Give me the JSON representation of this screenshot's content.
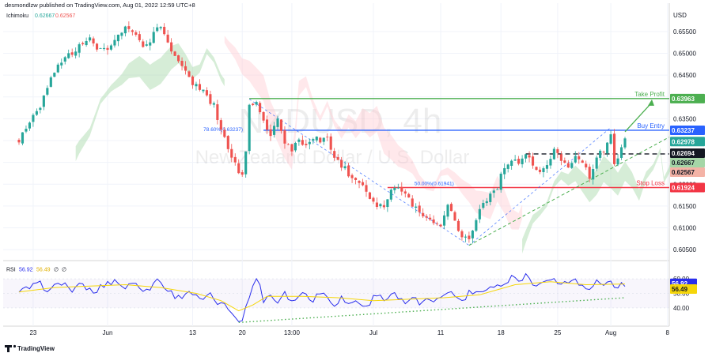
{
  "header": {
    "publisher": "desmondlzw published on TradingView.com, Aug 01, 2022 12:59 UTC+8",
    "indicator_name": "Ichimoku",
    "indicator_v1": "0.62667",
    "indicator_v2": "0.62567"
  },
  "watermark": {
    "symbol": "NZDUSD, 4h",
    "description": "New Zealand Dollar / U.S. Dollar"
  },
  "footer": {
    "brand": "TradingView"
  },
  "colors": {
    "up": "#26a69a",
    "down": "#ef5350",
    "take_profit": "#4caf50",
    "buy_entry": "#2962ff",
    "stop_loss": "#f23645",
    "rsi": "#2a2eec",
    "rsi_ma": "#f5d60a",
    "cloud_green": "#a5d6a7",
    "cloud_red": "#ffcdd2"
  },
  "chart_data": [
    {
      "type": "candlestick",
      "currency": "USD",
      "x_ticks": [
        "23",
        "Jun",
        "13",
        "20",
        "13:00",
        "Jul",
        "11",
        "18",
        "25",
        "Aug",
        "8"
      ],
      "ylim": [
        0.6025,
        0.6615
      ],
      "y_ticks": [
        "0.65500",
        "0.65000",
        "0.64500",
        "0.64000",
        "0.63500",
        "0.63000",
        "0.62500",
        "0.62000",
        "0.61500",
        "0.61000",
        "0.60500"
      ],
      "price_path": [
        [
          0,
          0.63
        ],
        [
          3,
          0.6345
        ],
        [
          6,
          0.638
        ],
        [
          9,
          0.645
        ],
        [
          12,
          0.648
        ],
        [
          15,
          0.65
        ],
        [
          17,
          0.652
        ],
        [
          20,
          0.653
        ],
        [
          23,
          0.6505
        ],
        [
          26,
          0.652
        ],
        [
          29,
          0.655
        ],
        [
          31,
          0.656
        ],
        [
          33,
          0.654
        ],
        [
          35,
          0.6515
        ],
        [
          37,
          0.6525
        ],
        [
          39,
          0.6565
        ],
        [
          41,
          0.6545
        ],
        [
          43,
          0.6505
        ],
        [
          45,
          0.648
        ],
        [
          47,
          0.646
        ],
        [
          49,
          0.643
        ],
        [
          51,
          0.642
        ],
        [
          53,
          0.64
        ],
        [
          55,
          0.638
        ],
        [
          57,
          0.632
        ],
        [
          59,
          0.6285
        ],
        [
          61,
          0.6245
        ],
        [
          63,
          0.6215
        ],
        [
          64,
          0.628
        ],
        [
          65,
          0.638
        ],
        [
          67,
          0.6395
        ],
        [
          69,
          0.6345
        ],
        [
          71,
          0.631
        ],
        [
          73,
          0.6345
        ],
        [
          75,
          0.63
        ],
        [
          77,
          0.6275
        ],
        [
          79,
          0.6305
        ],
        [
          81,
          0.6285
        ],
        [
          83,
          0.631
        ],
        [
          85,
          0.6295
        ],
        [
          87,
          0.631
        ],
        [
          89,
          0.626
        ],
        [
          91,
          0.6245
        ],
        [
          93,
          0.6225
        ],
        [
          95,
          0.6215
        ],
        [
          97,
          0.62
        ],
        [
          99,
          0.617
        ],
        [
          101,
          0.6155
        ],
        [
          103,
          0.615
        ],
        [
          105,
          0.6185
        ],
        [
          107,
          0.619
        ],
        [
          109,
          0.6175
        ],
        [
          111,
          0.6155
        ],
        [
          113,
          0.614
        ],
        [
          115,
          0.612
        ],
        [
          117,
          0.6115
        ],
        [
          119,
          0.611
        ],
        [
          121,
          0.615
        ],
        [
          123,
          0.612
        ],
        [
          125,
          0.608
        ],
        [
          127,
          0.6075
        ],
        [
          129,
          0.612
        ],
        [
          131,
          0.616
        ],
        [
          133,
          0.6175
        ],
        [
          135,
          0.6195
        ],
        [
          137,
          0.624
        ],
        [
          139,
          0.626
        ],
        [
          141,
          0.625
        ],
        [
          143,
          0.6265
        ],
        [
          145,
          0.6245
        ],
        [
          147,
          0.6225
        ],
        [
          149,
          0.6245
        ],
        [
          151,
          0.6275
        ],
        [
          153,
          0.626
        ],
        [
          155,
          0.624
        ],
        [
          157,
          0.627
        ],
        [
          159,
          0.625
        ],
        [
          161,
          0.6215
        ],
        [
          163,
          0.626
        ],
        [
          165,
          0.628
        ],
        [
          167,
          0.6318
        ],
        [
          168,
          0.625
        ],
        [
          169,
          0.6265
        ],
        [
          171,
          0.6298
        ]
      ],
      "ichimoku": {
        "last_value_1": 0.62667,
        "last_value_2": 0.62567
      },
      "levels": [
        {
          "name": "Take Profit",
          "value": "0.63963"
        },
        {
          "name": "Buy Entry",
          "value": "0.63237"
        },
        {
          "name": "Stop Loss",
          "value": "0.61924"
        }
      ],
      "price_labels": [
        "0.62978",
        "0.62694",
        "0.62667",
        "0.62567"
      ],
      "fib_labels": [
        "78.60%(0.63237)",
        "50.00%(0.61941)"
      ],
      "dashed_level": 0.62694
    },
    {
      "type": "line",
      "name": "RSI",
      "label": "RSI",
      "value_label": "56.92",
      "ma_label": "56.49",
      "inline_values": [
        "56.92",
        "56.49"
      ],
      "inline_na": [
        "∅",
        "∅"
      ],
      "ylim": [
        28,
        72
      ],
      "y_ticks": [
        "60.00",
        "50.00",
        "40.00"
      ],
      "values": [
        [
          0,
          50
        ],
        [
          3,
          54
        ],
        [
          6,
          56
        ],
        [
          9,
          52
        ],
        [
          12,
          58
        ],
        [
          15,
          52
        ],
        [
          18,
          56
        ],
        [
          21,
          50
        ],
        [
          24,
          56
        ],
        [
          27,
          59
        ],
        [
          30,
          54
        ],
        [
          33,
          58
        ],
        [
          36,
          51
        ],
        [
          39,
          60
        ],
        [
          42,
          52
        ],
        [
          45,
          47
        ],
        [
          48,
          52
        ],
        [
          51,
          45
        ],
        [
          54,
          48
        ],
        [
          57,
          42
        ],
        [
          59,
          40
        ],
        [
          61,
          35
        ],
        [
          63,
          31
        ],
        [
          65,
          48
        ],
        [
          67,
          62
        ],
        [
          69,
          46
        ],
        [
          71,
          49
        ],
        [
          73,
          44
        ],
        [
          75,
          52
        ],
        [
          77,
          44
        ],
        [
          79,
          49
        ],
        [
          81,
          50
        ],
        [
          83,
          46
        ],
        [
          85,
          51
        ],
        [
          87,
          48
        ],
        [
          89,
          43
        ],
        [
          91,
          47
        ],
        [
          93,
          42
        ],
        [
          95,
          46
        ],
        [
          97,
          40
        ],
        [
          99,
          44
        ],
        [
          101,
          49
        ],
        [
          103,
          45
        ],
        [
          105,
          52
        ],
        [
          107,
          47
        ],
        [
          109,
          43
        ],
        [
          111,
          48
        ],
        [
          113,
          42
        ],
        [
          115,
          46
        ],
        [
          117,
          42
        ],
        [
          119,
          47
        ],
        [
          121,
          52
        ],
        [
          123,
          48
        ],
        [
          125,
          44
        ],
        [
          127,
          50
        ],
        [
          129,
          51
        ],
        [
          131,
          49
        ],
        [
          133,
          53
        ],
        [
          135,
          58
        ],
        [
          137,
          55
        ],
        [
          139,
          64
        ],
        [
          141,
          58
        ],
        [
          143,
          62
        ],
        [
          145,
          55
        ],
        [
          147,
          59
        ],
        [
          149,
          57
        ],
        [
          151,
          62
        ],
        [
          153,
          55
        ],
        [
          155,
          58
        ],
        [
          157,
          60
        ],
        [
          159,
          56
        ],
        [
          161,
          52
        ],
        [
          163,
          58
        ],
        [
          165,
          55
        ],
        [
          167,
          60
        ],
        [
          168,
          52
        ],
        [
          169,
          55
        ],
        [
          171,
          56.92
        ]
      ],
      "ma": [
        [
          0,
          51
        ],
        [
          10,
          54
        ],
        [
          20,
          55
        ],
        [
          30,
          56
        ],
        [
          40,
          54
        ],
        [
          50,
          50
        ],
        [
          57,
          45
        ],
        [
          62,
          38
        ],
        [
          66,
          42
        ],
        [
          70,
          48
        ],
        [
          80,
          48
        ],
        [
          90,
          47
        ],
        [
          100,
          45
        ],
        [
          110,
          46
        ],
        [
          120,
          47
        ],
        [
          130,
          49
        ],
        [
          140,
          56
        ],
        [
          150,
          58
        ],
        [
          160,
          56
        ],
        [
          171,
          56.49
        ]
      ]
    }
  ]
}
